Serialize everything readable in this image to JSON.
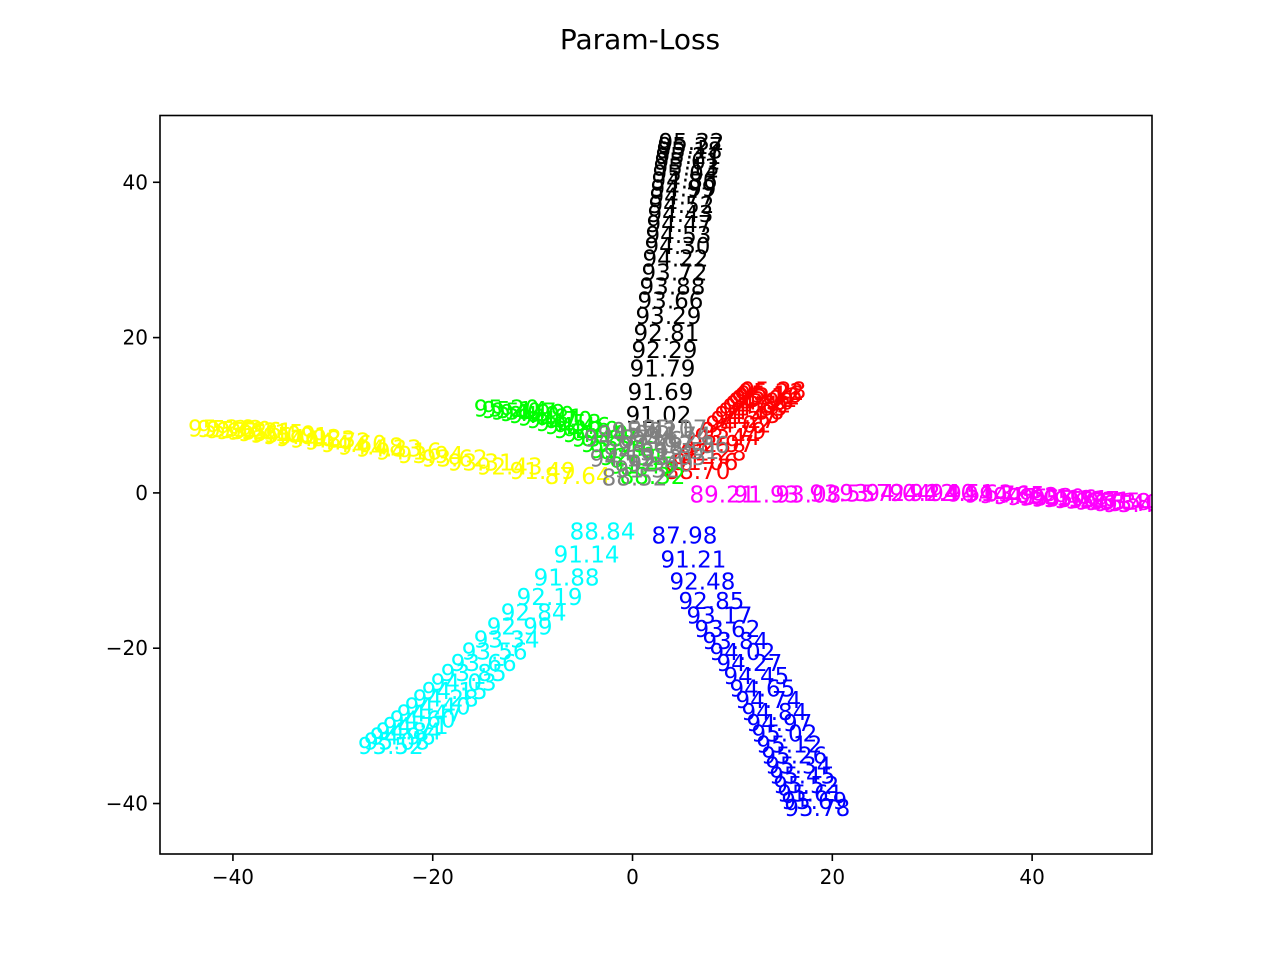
{
  "chart_data": {
    "type": "scatter",
    "title": "Param-Loss",
    "xlabel": "",
    "ylabel": "",
    "xlim": [
      -47.3,
      52.0
    ],
    "ylim": [
      -46.5,
      48.6
    ],
    "xticks": [
      -40,
      -20,
      0,
      20,
      40
    ],
    "yticks": [
      -40,
      -20,
      0,
      20,
      40
    ],
    "xtick_labels": [
      "−40",
      "−20",
      "0",
      "20",
      "40"
    ],
    "ytick_labels": [
      "−40",
      "−20",
      "0",
      "20",
      "40"
    ],
    "grid": false,
    "legend": "none",
    "note": "Each point is drawn as a text label showing a loss value at (x, y).",
    "series": [
      {
        "color": "#000000",
        "points": [
          {
            "x": 2.6,
            "y": 10.0,
            "label": "91.02"
          },
          {
            "x": 2.8,
            "y": 13.0,
            "label": "91.69"
          },
          {
            "x": 3.0,
            "y": 16.0,
            "label": "91.79"
          },
          {
            "x": 3.2,
            "y": 18.4,
            "label": "92.29"
          },
          {
            "x": 3.4,
            "y": 20.6,
            "label": "92.81"
          },
          {
            "x": 3.6,
            "y": 22.8,
            "label": "93.29"
          },
          {
            "x": 3.8,
            "y": 24.8,
            "label": "93.66"
          },
          {
            "x": 4.0,
            "y": 26.6,
            "label": "93.88"
          },
          {
            "x": 4.2,
            "y": 28.4,
            "label": "93.72"
          },
          {
            "x": 4.3,
            "y": 30.2,
            "label": "94.22"
          },
          {
            "x": 4.5,
            "y": 31.8,
            "label": "94.30"
          },
          {
            "x": 4.6,
            "y": 33.2,
            "label": "94.53"
          },
          {
            "x": 4.7,
            "y": 34.6,
            "label": "94.47"
          },
          {
            "x": 4.8,
            "y": 35.9,
            "label": "94.43"
          },
          {
            "x": 4.9,
            "y": 37.1,
            "label": "94.52"
          },
          {
            "x": 5.0,
            "y": 38.2,
            "label": "94.77"
          },
          {
            "x": 5.1,
            "y": 39.2,
            "label": "94.99"
          },
          {
            "x": 5.2,
            "y": 40.2,
            "label": "94.86"
          },
          {
            "x": 5.3,
            "y": 41.1,
            "label": "95.04"
          },
          {
            "x": 5.4,
            "y": 41.9,
            "label": "95.13"
          },
          {
            "x": 5.5,
            "y": 42.7,
            "label": "95.01"
          },
          {
            "x": 5.6,
            "y": 43.4,
            "label": "95.21"
          },
          {
            "x": 5.7,
            "y": 44.1,
            "label": "95.18"
          },
          {
            "x": 5.8,
            "y": 44.7,
            "label": "95.27"
          },
          {
            "x": 5.9,
            "y": 45.2,
            "label": "95.32"
          }
        ]
      },
      {
        "color": "#ff0000",
        "points": [
          {
            "x": 6.5,
            "y": 2.8,
            "label": "88.70"
          },
          {
            "x": 7.3,
            "y": 4.0,
            "label": "91.06"
          },
          {
            "x": 8.1,
            "y": 5.2,
            "label": "92.28"
          },
          {
            "x": 8.9,
            "y": 6.3,
            "label": "92.97"
          },
          {
            "x": 9.5,
            "y": 7.2,
            "label": "93.44"
          },
          {
            "x": 10.1,
            "y": 8.0,
            "label": "93.79"
          },
          {
            "x": 10.6,
            "y": 8.8,
            "label": "94.02"
          },
          {
            "x": 11.1,
            "y": 9.4,
            "label": "94.27"
          },
          {
            "x": 11.5,
            "y": 10.0,
            "label": "94.43"
          },
          {
            "x": 11.9,
            "y": 10.5,
            "label": "94.56"
          },
          {
            "x": 12.3,
            "y": 11.0,
            "label": "94.69"
          },
          {
            "x": 12.6,
            "y": 11.4,
            "label": "94.82"
          },
          {
            "x": 12.9,
            "y": 11.8,
            "label": "94.90"
          },
          {
            "x": 13.2,
            "y": 12.1,
            "label": "95.01"
          },
          {
            "x": 13.5,
            "y": 12.4,
            "label": "95.12"
          },
          {
            "x": 13.7,
            "y": 12.7,
            "label": "95.16"
          },
          {
            "x": 13.9,
            "y": 13.0,
            "label": "95.22"
          },
          {
            "x": 14.1,
            "y": 13.2,
            "label": "95.28"
          }
        ]
      },
      {
        "color": "#ff00ff",
        "points": [
          {
            "x": 9.0,
            "y": -0.2,
            "label": "89.21"
          },
          {
            "x": 13.4,
            "y": -0.2,
            "label": "91.93"
          },
          {
            "x": 17.6,
            "y": -0.2,
            "label": "93.08"
          },
          {
            "x": 21.0,
            "y": -0.1,
            "label": "93.55"
          },
          {
            "x": 24.0,
            "y": 0.0,
            "label": "93.72"
          },
          {
            "x": 26.6,
            "y": 0.0,
            "label": "94.04"
          },
          {
            "x": 29.0,
            "y": 0.0,
            "label": "94.22"
          },
          {
            "x": 31.0,
            "y": 0.0,
            "label": "94.40"
          },
          {
            "x": 33.0,
            "y": 0.0,
            "label": "94.51"
          },
          {
            "x": 34.8,
            "y": -0.1,
            "label": "94.63"
          },
          {
            "x": 36.5,
            "y": -0.2,
            "label": "94.76"
          },
          {
            "x": 38.0,
            "y": -0.3,
            "label": "94.85"
          },
          {
            "x": 39.4,
            "y": -0.4,
            "label": "94.92"
          },
          {
            "x": 40.8,
            "y": -0.5,
            "label": "95.03"
          },
          {
            "x": 42.0,
            "y": -0.6,
            "label": "95.10"
          },
          {
            "x": 43.2,
            "y": -0.7,
            "label": "95.16"
          },
          {
            "x": 44.4,
            "y": -0.8,
            "label": "95.21"
          },
          {
            "x": 45.5,
            "y": -0.9,
            "label": "95.27"
          },
          {
            "x": 46.6,
            "y": -1.0,
            "label": "95.31"
          },
          {
            "x": 47.6,
            "y": -1.1,
            "label": "95.35"
          },
          {
            "x": 48.6,
            "y": -1.2,
            "label": "95.38"
          },
          {
            "x": 49.5,
            "y": -1.3,
            "label": "95.40"
          },
          {
            "x": 50.4,
            "y": -1.4,
            "label": "95.42"
          }
        ]
      },
      {
        "color": "#0000ff",
        "points": [
          {
            "x": 5.2,
            "y": -5.5,
            "label": "87.98"
          },
          {
            "x": 6.1,
            "y": -8.6,
            "label": "91.21"
          },
          {
            "x": 7.0,
            "y": -11.4,
            "label": "92.48"
          },
          {
            "x": 7.9,
            "y": -13.9,
            "label": "92.85"
          },
          {
            "x": 8.7,
            "y": -15.8,
            "label": "93.17"
          },
          {
            "x": 9.5,
            "y": -17.5,
            "label": "93.62"
          },
          {
            "x": 10.3,
            "y": -19.1,
            "label": "93.84"
          },
          {
            "x": 11.0,
            "y": -20.5,
            "label": "94.02"
          },
          {
            "x": 11.7,
            "y": -21.9,
            "label": "94.27"
          },
          {
            "x": 12.4,
            "y": -23.6,
            "label": "94.45"
          },
          {
            "x": 13.0,
            "y": -25.2,
            "label": "94.65"
          },
          {
            "x": 13.6,
            "y": -26.7,
            "label": "94.74"
          },
          {
            "x": 14.2,
            "y": -28.2,
            "label": "94.84"
          },
          {
            "x": 14.7,
            "y": -29.6,
            "label": "94.97"
          },
          {
            "x": 15.2,
            "y": -31.0,
            "label": "95.02"
          },
          {
            "x": 15.7,
            "y": -32.4,
            "label": "95.12"
          },
          {
            "x": 16.2,
            "y": -33.8,
            "label": "95.26"
          },
          {
            "x": 16.6,
            "y": -35.1,
            "label": "95.34"
          },
          {
            "x": 17.0,
            "y": -36.4,
            "label": "95.45"
          },
          {
            "x": 17.4,
            "y": -37.6,
            "label": "95.52"
          },
          {
            "x": 17.8,
            "y": -38.7,
            "label": "95.61"
          },
          {
            "x": 18.2,
            "y": -39.7,
            "label": "95.69"
          },
          {
            "x": 18.5,
            "y": -40.6,
            "label": "95.78"
          }
        ]
      },
      {
        "color": "#00ffff",
        "points": [
          {
            "x": -3.0,
            "y": -5.0,
            "label": "88.84"
          },
          {
            "x": -4.6,
            "y": -7.9,
            "label": "91.14"
          },
          {
            "x": -6.6,
            "y": -10.9,
            "label": "91.88"
          },
          {
            "x": -8.3,
            "y": -13.4,
            "label": "92.19"
          },
          {
            "x": -9.9,
            "y": -15.4,
            "label": "92.84"
          },
          {
            "x": -11.3,
            "y": -17.2,
            "label": "92.99"
          },
          {
            "x": -12.6,
            "y": -18.9,
            "label": "93.34"
          },
          {
            "x": -13.8,
            "y": -20.4,
            "label": "93.56"
          },
          {
            "x": -14.9,
            "y": -21.9,
            "label": "93.66"
          },
          {
            "x": -15.9,
            "y": -23.2,
            "label": "93.85"
          },
          {
            "x": -16.9,
            "y": -24.4,
            "label": "94.03"
          },
          {
            "x": -17.8,
            "y": -25.5,
            "label": "94.15"
          },
          {
            "x": -18.7,
            "y": -26.5,
            "label": "94.28"
          },
          {
            "x": -19.5,
            "y": -27.5,
            "label": "94.40"
          },
          {
            "x": -20.3,
            "y": -28.4,
            "label": "94.47"
          },
          {
            "x": -21.0,
            "y": -29.2,
            "label": "94.60"
          },
          {
            "x": -21.7,
            "y": -30.0,
            "label": "94.71"
          },
          {
            "x": -22.4,
            "y": -30.7,
            "label": "94.84"
          },
          {
            "x": -23.0,
            "y": -31.4,
            "label": "94.96"
          },
          {
            "x": -23.6,
            "y": -32.0,
            "label": "95.08"
          },
          {
            "x": -24.2,
            "y": -32.6,
            "label": "95.52"
          }
        ]
      },
      {
        "color": "#ffff00",
        "points": [
          {
            "x": -5.5,
            "y": 2.2,
            "label": "87.64"
          },
          {
            "x": -9.0,
            "y": 2.8,
            "label": "91.49"
          },
          {
            "x": -12.3,
            "y": 3.4,
            "label": "92.43"
          },
          {
            "x": -15.2,
            "y": 3.9,
            "label": "93.31"
          },
          {
            "x": -17.8,
            "y": 4.4,
            "label": "93.62"
          },
          {
            "x": -20.2,
            "y": 4.9,
            "label": "93.94"
          },
          {
            "x": -22.4,
            "y": 5.3,
            "label": "94.16"
          },
          {
            "x": -24.4,
            "y": 5.7,
            "label": "94.33"
          },
          {
            "x": -26.2,
            "y": 6.0,
            "label": "94.48"
          },
          {
            "x": -27.9,
            "y": 6.3,
            "label": "94.60"
          },
          {
            "x": -29.5,
            "y": 6.6,
            "label": "94.72"
          },
          {
            "x": -31.0,
            "y": 6.9,
            "label": "94.83"
          },
          {
            "x": -32.4,
            "y": 7.1,
            "label": "94.92"
          },
          {
            "x": -33.7,
            "y": 7.3,
            "label": "95.01"
          },
          {
            "x": -35.0,
            "y": 7.5,
            "label": "95.09"
          },
          {
            "x": -36.2,
            "y": 7.7,
            "label": "95.15"
          },
          {
            "x": -37.3,
            "y": 7.9,
            "label": "95.21"
          },
          {
            "x": -38.4,
            "y": 8.0,
            "label": "95.26"
          },
          {
            "x": -39.4,
            "y": 8.1,
            "label": "95.30"
          },
          {
            "x": -40.3,
            "y": 8.2,
            "label": "95.33"
          },
          {
            "x": -41.2,
            "y": 8.3,
            "label": "95.36"
          }
        ]
      },
      {
        "color": "#00ff00",
        "points": [
          {
            "x": 2.0,
            "y": 2.2,
            "label": "88.32"
          },
          {
            "x": 1.0,
            "y": 3.5,
            "label": "91.45"
          },
          {
            "x": 0.0,
            "y": 4.6,
            "label": "92.51"
          },
          {
            "x": -1.0,
            "y": 5.5,
            "label": "93.16"
          },
          {
            "x": -1.9,
            "y": 6.3,
            "label": "93.58"
          },
          {
            "x": -2.8,
            "y": 7.0,
            "label": "93.87"
          },
          {
            "x": -3.7,
            "y": 7.6,
            "label": "94.10"
          },
          {
            "x": -4.6,
            "y": 8.1,
            "label": "94.29"
          },
          {
            "x": -5.5,
            "y": 8.6,
            "label": "94.46"
          },
          {
            "x": -6.4,
            "y": 9.0,
            "label": "94.58"
          },
          {
            "x": -7.3,
            "y": 9.4,
            "label": "94.70"
          },
          {
            "x": -8.2,
            "y": 9.7,
            "label": "94.81"
          },
          {
            "x": -9.1,
            "y": 10.0,
            "label": "94.90"
          },
          {
            "x": -10.0,
            "y": 10.3,
            "label": "94.99"
          },
          {
            "x": -10.9,
            "y": 10.5,
            "label": "95.07"
          },
          {
            "x": -11.8,
            "y": 10.7,
            "label": "95.14"
          },
          {
            "x": -12.6,
            "y": 10.9,
            "label": "95.20"
          }
        ]
      },
      {
        "color": "#808080",
        "points": [
          {
            "x": 0.2,
            "y": 2.0,
            "label": "88.52"
          },
          {
            "x": 1.5,
            "y": 3.0,
            "label": "91.32"
          },
          {
            "x": 2.8,
            "y": 3.8,
            "label": "92.40"
          },
          {
            "x": 4.1,
            "y": 4.6,
            "label": "93.05"
          },
          {
            "x": 5.4,
            "y": 5.4,
            "label": "93.51"
          },
          {
            "x": 6.4,
            "y": 6.2,
            "label": "93.86"
          },
          {
            "x": -1.0,
            "y": 4.4,
            "label": "94.12"
          },
          {
            "x": 0.4,
            "y": 5.2,
            "label": "94.31"
          },
          {
            "x": 1.8,
            "y": 6.0,
            "label": "94.48"
          },
          {
            "x": 3.2,
            "y": 6.8,
            "label": "94.62"
          },
          {
            "x": 4.6,
            "y": 7.4,
            "label": "94.74"
          },
          {
            "x": -1.6,
            "y": 7.0,
            "label": "94.85"
          },
          {
            "x": -0.2,
            "y": 7.6,
            "label": "94.94"
          },
          {
            "x": 1.2,
            "y": 8.0,
            "label": "95.02"
          },
          {
            "x": 2.8,
            "y": 8.2,
            "label": "95.10"
          },
          {
            "x": 4.2,
            "y": 8.3,
            "label": "95.17"
          }
        ]
      }
    ]
  }
}
